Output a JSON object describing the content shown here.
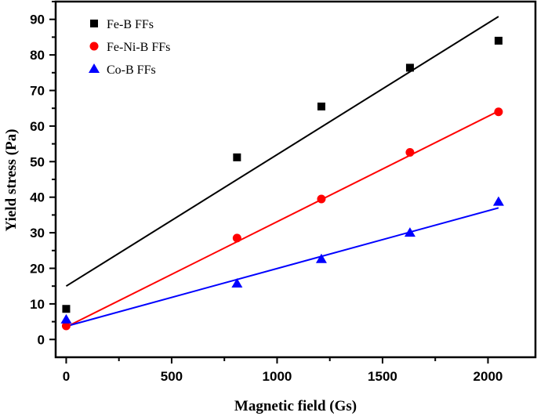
{
  "chart_data": {
    "type": "scatter",
    "title": "",
    "xlabel": "Magnetic field (Gs)",
    "ylabel": "Yield stress (Pa)",
    "xlim": [
      -50,
      2225
    ],
    "ylim": [
      -5,
      95
    ],
    "xticks": [
      0,
      500,
      1000,
      1500,
      2000
    ],
    "yticks": [
      0,
      10,
      20,
      30,
      40,
      50,
      60,
      70,
      80,
      90
    ],
    "grid": false,
    "legend_position": "top-left",
    "series": [
      {
        "name": "Fe-B  FFs",
        "color": "#000000",
        "marker": "square",
        "x": [
          0,
          810,
          1210,
          1630,
          2050
        ],
        "y": [
          8.6,
          51.2,
          65.5,
          76.4,
          84.0
        ],
        "fit": {
          "x": [
            0,
            2050
          ],
          "y": [
            15.0,
            90.8
          ]
        }
      },
      {
        "name": "Fe-Ni-B FFs",
        "color": "#ff0000",
        "marker": "circle",
        "x": [
          0,
          810,
          1210,
          1630,
          2050
        ],
        "y": [
          3.8,
          28.5,
          39.5,
          52.6,
          64.0
        ],
        "fit": {
          "x": [
            0,
            2050
          ],
          "y": [
            3.5,
            64.2
          ]
        }
      },
      {
        "name": "Co-B FFs",
        "color": "#0000ff",
        "marker": "triangle",
        "x": [
          0,
          810,
          1210,
          1630,
          2050
        ],
        "y": [
          5.6,
          15.7,
          22.6,
          30.0,
          38.7
        ],
        "fit": {
          "x": [
            0,
            2050
          ],
          "y": [
            3.7,
            37.0
          ]
        }
      }
    ]
  }
}
